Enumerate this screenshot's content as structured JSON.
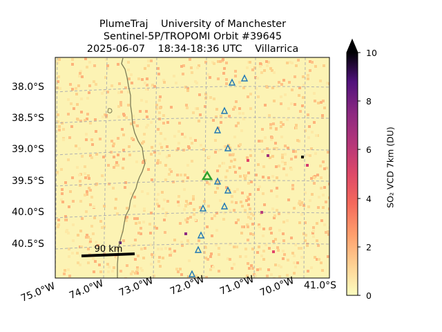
{
  "title": {
    "line1": "PlumeTraj    University of Manchester",
    "line2": "Sentinel-5P/TROPOMI Orbit #39645",
    "line3": "2025-06-07    18:34-18:36 UTC    Villarrica"
  },
  "map": {
    "lat_labels": [
      "38.0°S",
      "38.5°S",
      "39.0°S",
      "39.5°S",
      "40.0°S",
      "40.5°S"
    ],
    "lon_labels": [
      "75.0°W",
      "74.0°W",
      "73.0°W",
      "72.0°W",
      "71.0°W",
      "70.0°W"
    ],
    "corner_label": "41.0°S",
    "scale_bar_label": "90 km",
    "volcano_name": "Villarrica"
  },
  "colorbar": {
    "label": "SO₂ VCD 7km (DU)",
    "ticks": [
      "0",
      "2",
      "4",
      "6",
      "8",
      "10"
    ],
    "min": 0,
    "max": 10,
    "extend": "max",
    "colormap": "magma_r"
  },
  "colors": {
    "background_low": "#fcf3b4",
    "volcano_marker": "#2ca02c",
    "station_marker": "#1f77b4",
    "coastline": "#7a7a55",
    "gridline": "#b0b0b0"
  }
}
